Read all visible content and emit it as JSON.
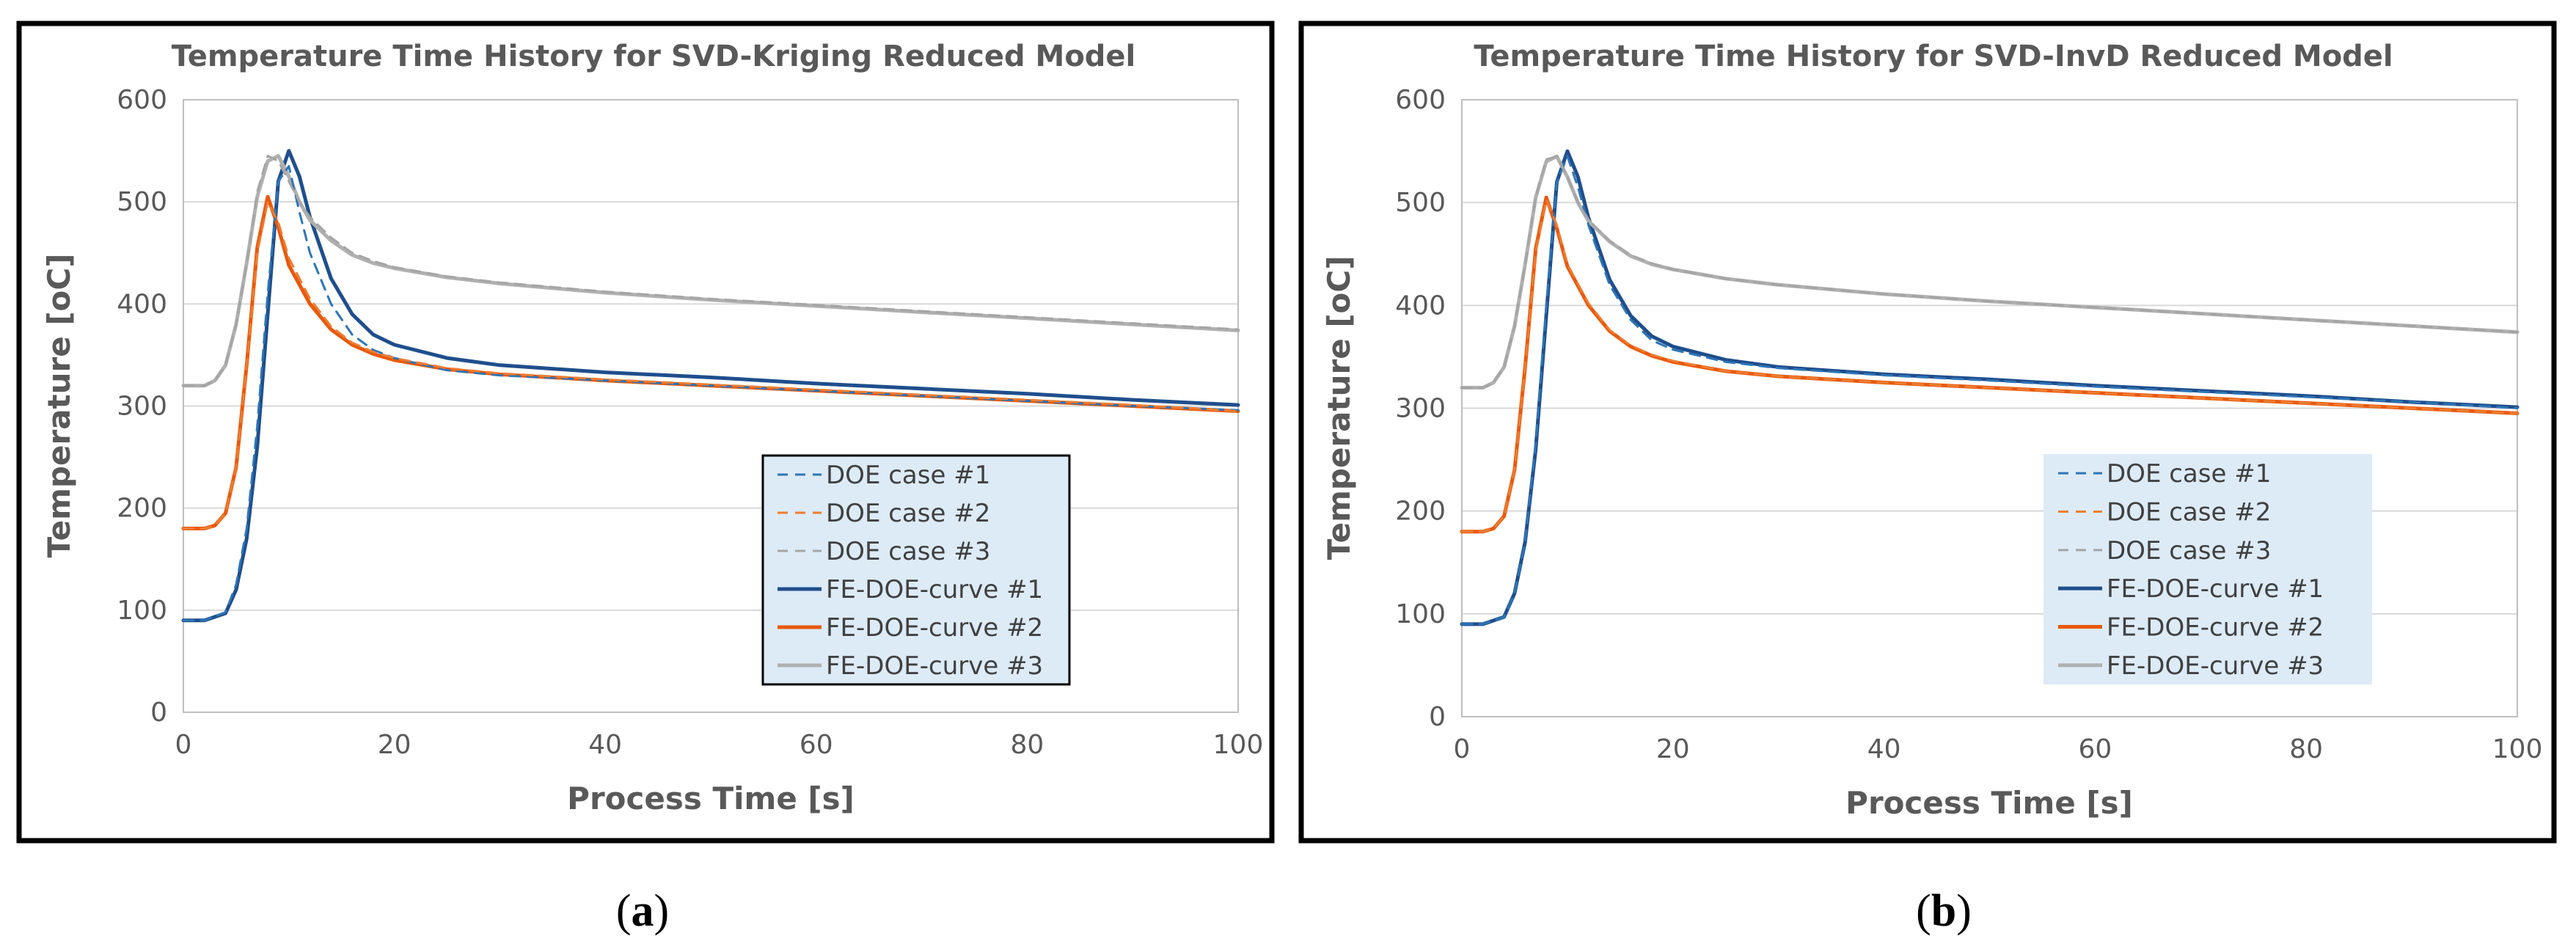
{
  "colors": {
    "series1": "#2E75B6",
    "series2": "#ED7D31",
    "series3": "#A5A5A5",
    "fe1": "#1F4E8C",
    "fe2": "#E8590C",
    "fe3": "#B0B0B0",
    "legend_bg": "#DDEBF7",
    "grid": "#D9D9D9",
    "frame": "#000000"
  },
  "chart_data": [
    {
      "type": "line",
      "panel_label": "a",
      "title": "Temperature Time History for SVD-Kriging Reduced Model",
      "xlabel": "Process Time [s]",
      "ylabel": "Temperature [oC]",
      "xlim": [
        0,
        100
      ],
      "ylim": [
        0,
        600
      ],
      "xticks": [
        "0",
        "20",
        "40",
        "60",
        "80",
        "100"
      ],
      "yticks": [
        "0",
        "100",
        "200",
        "300",
        "400",
        "500",
        "600"
      ],
      "grid": "horizontal",
      "legend_placement": "center-right",
      "legend_border": true,
      "series": [
        {
          "name": "DOE case #1",
          "style": "dashed",
          "color_key": "series1",
          "x": [
            0,
            2,
            4,
            5,
            6,
            7,
            8,
            9,
            10,
            11,
            12,
            14,
            16,
            18,
            20,
            25,
            30,
            40,
            50,
            60,
            70,
            80,
            90,
            100
          ],
          "y": [
            90,
            90,
            98,
            125,
            180,
            280,
            410,
            520,
            535,
            490,
            450,
            400,
            370,
            355,
            347,
            335,
            330,
            325,
            320,
            315,
            310,
            305,
            300,
            296
          ]
        },
        {
          "name": "DOE case #2",
          "style": "dashed",
          "color_key": "series2",
          "x": [
            0,
            2,
            3,
            4,
            5,
            6,
            7,
            8,
            9,
            10,
            12,
            14,
            16,
            18,
            20,
            25,
            30,
            40,
            50,
            60,
            70,
            80,
            90,
            100
          ],
          "y": [
            180,
            180,
            183,
            195,
            240,
            340,
            450,
            500,
            480,
            445,
            405,
            378,
            362,
            353,
            347,
            337,
            332,
            326,
            321,
            316,
            311,
            306,
            301,
            295
          ]
        },
        {
          "name": "DOE case #3",
          "style": "dashed",
          "color_key": "series3",
          "x": [
            0,
            2,
            3,
            4,
            5,
            6,
            7,
            8,
            9,
            10,
            11,
            12,
            14,
            16,
            18,
            20,
            25,
            30,
            40,
            50,
            60,
            70,
            80,
            90,
            100
          ],
          "y": [
            320,
            320,
            325,
            340,
            380,
            440,
            510,
            545,
            540,
            520,
            500,
            485,
            465,
            450,
            442,
            436,
            427,
            421,
            412,
            405,
            399,
            393,
            387,
            381,
            375
          ]
        },
        {
          "name": "FE-DOE-curve #1",
          "style": "solid",
          "color_key": "fe1",
          "x": [
            0,
            2,
            4,
            5,
            6,
            7,
            8,
            9,
            10,
            11,
            12,
            14,
            16,
            18,
            20,
            25,
            30,
            40,
            50,
            60,
            70,
            80,
            90,
            100
          ],
          "y": [
            90,
            90,
            97,
            120,
            170,
            260,
            390,
            520,
            550,
            525,
            485,
            425,
            390,
            370,
            360,
            347,
            340,
            333,
            328,
            322,
            317,
            312,
            306,
            301
          ]
        },
        {
          "name": "FE-DOE-curve #2",
          "style": "solid",
          "color_key": "fe2",
          "x": [
            0,
            2,
            3,
            4,
            5,
            6,
            7,
            8,
            9,
            10,
            12,
            14,
            16,
            18,
            20,
            25,
            30,
            40,
            50,
            60,
            70,
            80,
            90,
            100
          ],
          "y": [
            180,
            180,
            183,
            195,
            240,
            340,
            455,
            505,
            475,
            438,
            400,
            375,
            360,
            351,
            345,
            336,
            331,
            325,
            320,
            315,
            310,
            305,
            300,
            295
          ]
        },
        {
          "name": "FE-DOE-curve #3",
          "style": "solid",
          "color_key": "fe3",
          "x": [
            0,
            2,
            3,
            4,
            5,
            6,
            7,
            8,
            9,
            10,
            11,
            12,
            14,
            16,
            18,
            20,
            25,
            30,
            40,
            50,
            60,
            70,
            80,
            90,
            100
          ],
          "y": [
            320,
            320,
            325,
            340,
            380,
            440,
            505,
            540,
            545,
            525,
            500,
            482,
            462,
            448,
            440,
            435,
            426,
            420,
            411,
            404,
            398,
            392,
            386,
            380,
            374
          ]
        }
      ]
    },
    {
      "type": "line",
      "panel_label": "b",
      "title": "Temperature Time History for SVD-InvD Reduced Model",
      "xlabel": "Process Time [s]",
      "ylabel": "Temperature [oC]",
      "xlim": [
        0,
        100
      ],
      "ylim": [
        0,
        600
      ],
      "xticks": [
        "0",
        "20",
        "40",
        "60",
        "80",
        "100"
      ],
      "yticks": [
        "0",
        "100",
        "200",
        "300",
        "400",
        "500",
        "600"
      ],
      "grid": "horizontal",
      "legend_placement": "center-right",
      "legend_border": false,
      "series": [
        {
          "name": "DOE case #1",
          "style": "dashed",
          "color_key": "series1",
          "x": [
            0,
            2,
            4,
            5,
            6,
            7,
            8,
            9,
            10,
            11,
            12,
            14,
            16,
            18,
            20,
            25,
            30,
            40,
            50,
            60,
            70,
            80,
            90,
            100
          ],
          "y": [
            90,
            90,
            97,
            120,
            170,
            265,
            400,
            520,
            545,
            515,
            478,
            420,
            386,
            366,
            357,
            345,
            339,
            332,
            327,
            321,
            316,
            311,
            306,
            300
          ]
        },
        {
          "name": "DOE case #2",
          "style": "dashed",
          "color_key": "series2",
          "x": [
            0,
            2,
            3,
            4,
            5,
            6,
            7,
            8,
            9,
            10,
            12,
            14,
            16,
            18,
            20,
            25,
            30,
            40,
            50,
            60,
            70,
            80,
            90,
            100
          ],
          "y": [
            180,
            180,
            183,
            195,
            240,
            340,
            452,
            503,
            478,
            440,
            402,
            376,
            361,
            352,
            346,
            336,
            331,
            325,
            320,
            315,
            310,
            305,
            300,
            295
          ]
        },
        {
          "name": "DOE case #3",
          "style": "dashed",
          "color_key": "series3",
          "x": [
            0,
            2,
            3,
            4,
            5,
            6,
            7,
            8,
            9,
            10,
            11,
            12,
            14,
            16,
            18,
            20,
            25,
            30,
            40,
            50,
            60,
            70,
            80,
            90,
            100
          ],
          "y": [
            320,
            320,
            325,
            340,
            380,
            440,
            505,
            542,
            545,
            525,
            500,
            483,
            463,
            449,
            441,
            435,
            426,
            420,
            411,
            404,
            398,
            392,
            386,
            380,
            374
          ]
        },
        {
          "name": "FE-DOE-curve #1",
          "style": "solid",
          "color_key": "fe1",
          "x": [
            0,
            2,
            4,
            5,
            6,
            7,
            8,
            9,
            10,
            11,
            12,
            14,
            16,
            18,
            20,
            25,
            30,
            40,
            50,
            60,
            70,
            80,
            90,
            100
          ],
          "y": [
            90,
            90,
            97,
            120,
            170,
            260,
            390,
            520,
            550,
            525,
            485,
            425,
            390,
            370,
            360,
            347,
            340,
            333,
            328,
            322,
            317,
            312,
            306,
            301
          ]
        },
        {
          "name": "FE-DOE-curve #2",
          "style": "solid",
          "color_key": "fe2",
          "x": [
            0,
            2,
            3,
            4,
            5,
            6,
            7,
            8,
            9,
            10,
            12,
            14,
            16,
            18,
            20,
            25,
            30,
            40,
            50,
            60,
            70,
            80,
            90,
            100
          ],
          "y": [
            180,
            180,
            183,
            195,
            240,
            340,
            455,
            505,
            475,
            438,
            400,
            375,
            360,
            351,
            345,
            336,
            331,
            325,
            320,
            315,
            310,
            305,
            300,
            295
          ]
        },
        {
          "name": "FE-DOE-curve #3",
          "style": "solid",
          "color_key": "fe3",
          "x": [
            0,
            2,
            3,
            4,
            5,
            6,
            7,
            8,
            9,
            10,
            11,
            12,
            14,
            16,
            18,
            20,
            25,
            30,
            40,
            50,
            60,
            70,
            80,
            90,
            100
          ],
          "y": [
            320,
            320,
            325,
            340,
            380,
            440,
            505,
            540,
            545,
            525,
            500,
            482,
            462,
            448,
            440,
            435,
            426,
            420,
            411,
            404,
            398,
            392,
            386,
            380,
            374
          ]
        }
      ]
    }
  ]
}
